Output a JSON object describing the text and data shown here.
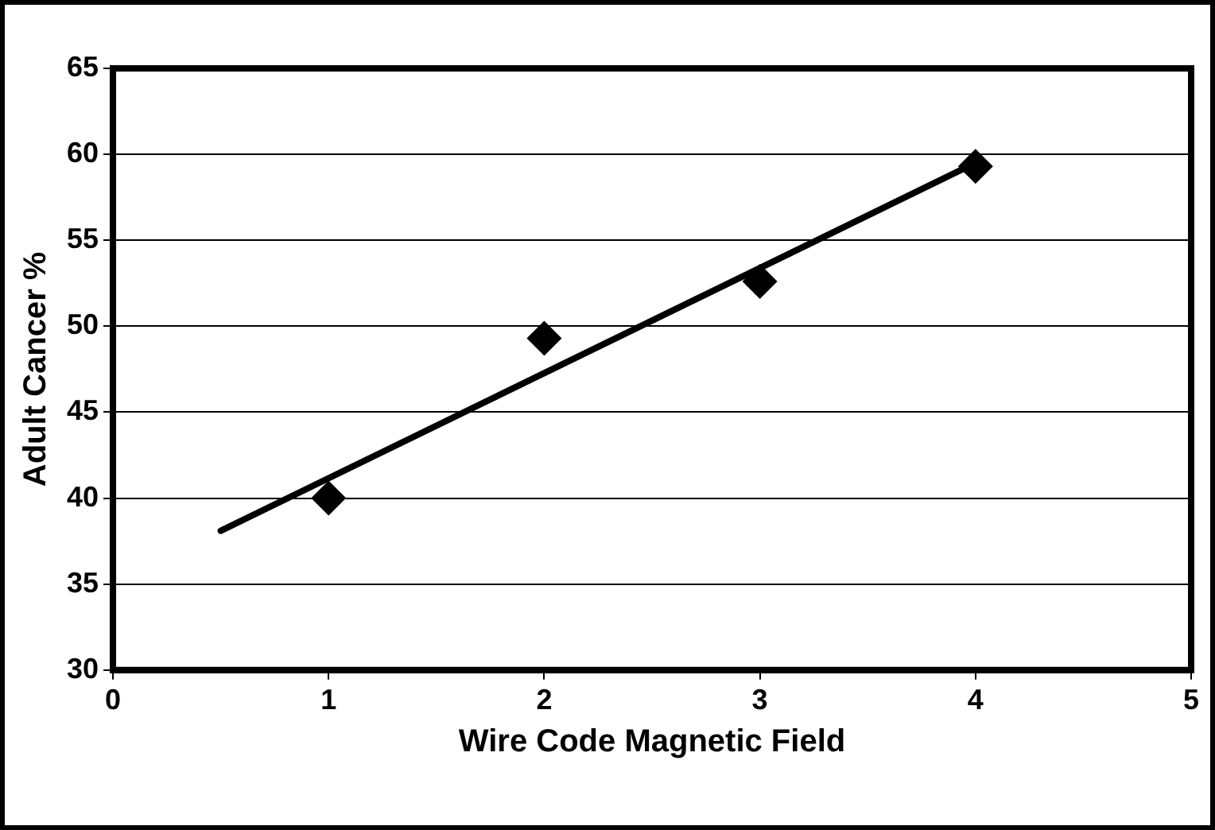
{
  "chart_data": {
    "type": "scatter",
    "xlabel": "Wire Code Magnetic Field",
    "ylabel": "Adult Cancer %",
    "series": [
      {
        "type": "scatter",
        "color": "#000000",
        "marker": "diamond",
        "x": [
          1,
          2,
          3,
          4
        ],
        "values": [
          40,
          49.3,
          52.6,
          59.3
        ]
      },
      {
        "type": "line",
        "color": "#000000",
        "marker": "none",
        "line_style": "solid",
        "x": [
          0.5,
          4
        ],
        "values": [
          38.1,
          59.5
        ]
      }
    ],
    "xlim": [
      0,
      5
    ],
    "ylim": [
      30,
      65
    ],
    "xticks": [
      0,
      1,
      2,
      3,
      4,
      5
    ],
    "yticks": [
      30,
      35,
      40,
      45,
      50,
      55,
      60,
      65
    ],
    "grid": "y",
    "legend": false
  }
}
